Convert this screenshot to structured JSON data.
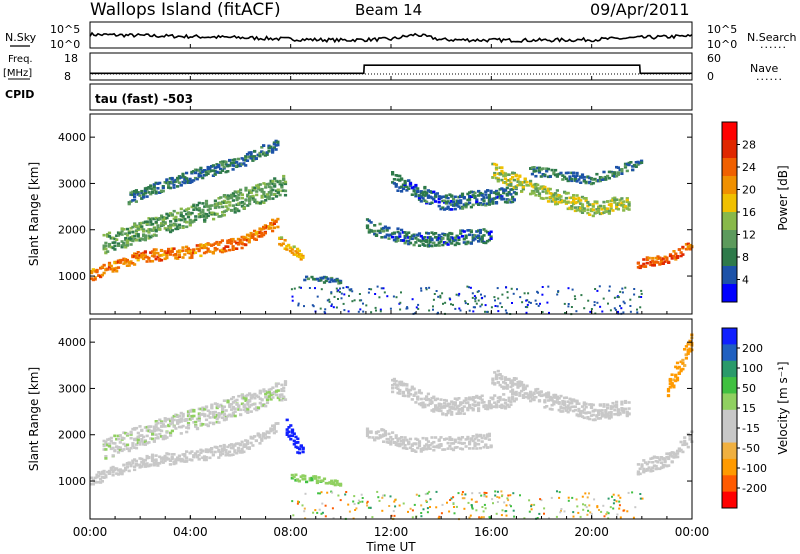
{
  "header": {
    "station": "Wallops Island (fitACF)",
    "beam": "Beam 14",
    "date": "09/Apr/2011"
  },
  "strip_labels": {
    "nsky": "N.Sky",
    "nsearch": "N.Search",
    "freq_top": "Freq.",
    "freq_unit": "[MHz]",
    "nave": "Nave",
    "cpid": "CPID",
    "cpid_value": "tau (fast) -503",
    "dotted": "......"
  },
  "strip_ticks": {
    "noise_left": [
      "10^5",
      "10^0"
    ],
    "noise_right": [
      "10^5",
      "10^0"
    ],
    "freq_left": [
      "18",
      "8"
    ],
    "nave_right": [
      "60",
      "0"
    ]
  },
  "panels": {
    "power": {
      "ylabel": "Slant Range [km]",
      "cbar_label": "Power [dB]",
      "cbar_ticks": [
        "28",
        "24",
        "20",
        "16",
        "12",
        "8",
        "4"
      ]
    },
    "velocity": {
      "ylabel": "Slant Range [km]",
      "cbar_label": "Velocity [m s⁻¹]",
      "cbar_ticks": [
        "200",
        "100",
        "50",
        "15",
        "-15",
        "-50",
        "-100",
        "-200"
      ]
    }
  },
  "colors": {
    "power_scale": [
      "#0000ff",
      "#1c52a8",
      "#2e7a4a",
      "#5c9a5c",
      "#88b84a",
      "#f0c000",
      "#f09000",
      "#f06000",
      "#e02800",
      "#ff0000"
    ],
    "velocity_scale": [
      "#ff0000",
      "#ff5a00",
      "#ff9a00",
      "#f0b040",
      "#c8c8c8",
      "#c8c8c8",
      "#90d060",
      "#40c040",
      "#2a9a6a",
      "#2060c0",
      "#1020ff"
    ]
  },
  "chart_data": [
    {
      "type": "line",
      "title": "N.Sky / N.Search",
      "xlabel": "Time UT",
      "x": [
        "00:00",
        "02:00",
        "04:00",
        "06:00",
        "08:00",
        "10:00",
        "12:00",
        "13:00",
        "14:00",
        "16:00",
        "18:00",
        "20:00",
        "22:00",
        "24:00"
      ],
      "series": [
        {
          "name": "N.Sky",
          "values": [
            2.6,
            2.4,
            2.2,
            2.0,
            1.7,
            1.5,
            1.7,
            2.6,
            1.6,
            1.5,
            1.5,
            1.6,
            2.0,
            2.3
          ]
        }
      ],
      "ylim": [
        0,
        5
      ],
      "ylabel": "",
      "scale": "log"
    },
    {
      "type": "line",
      "title": "Freq. / Nave",
      "x": [
        "00:00",
        "10:55",
        "10:56",
        "21:55",
        "21:56",
        "24:00"
      ],
      "series": [
        {
          "name": "Freq.",
          "values": [
            10.5,
            10.5,
            13.5,
            13.5,
            10.5,
            10.5
          ]
        }
      ],
      "ylim": [
        8,
        18
      ]
    },
    {
      "type": "heatmap",
      "title": "Power [dB]",
      "xlabel": "Time UT",
      "ylabel": "Slant Range [km]",
      "xticks": [
        "00:00",
        "04:00",
        "08:00",
        "12:00",
        "16:00",
        "20:00",
        "00:00"
      ],
      "yticks": [
        1000,
        2000,
        3000,
        4000
      ],
      "xlim": [
        0,
        24
      ],
      "ylim": [
        180,
        4500
      ],
      "colorbar_ticks": [
        4,
        8,
        12,
        16,
        20,
        24,
        28
      ],
      "bands": [
        {
          "t": [
            0.0,
            2.0,
            4.0,
            6.0,
            7.5
          ],
          "r": [
            1050,
            1450,
            1550,
            1750,
            2200
          ],
          "width": 250,
          "power": 22
        },
        {
          "t": [
            0.5,
            2.5,
            5.0,
            7.8
          ],
          "r": [
            1700,
            2100,
            2500,
            3000
          ],
          "width": 450,
          "power": 10
        },
        {
          "t": [
            1.5,
            3.5,
            6.0,
            7.5
          ],
          "r": [
            2700,
            3100,
            3500,
            3900
          ],
          "width": 250,
          "power": 6
        },
        {
          "t": [
            7.5,
            8.5
          ],
          "r": [
            1800,
            1400
          ],
          "width": 200,
          "power": 18
        },
        {
          "t": [
            8.5,
            10.0
          ],
          "r": [
            1000,
            900
          ],
          "width": 120,
          "power": 6
        },
        {
          "t": [
            11.0,
            13.0,
            16.0
          ],
          "r": [
            2100,
            1800,
            1900
          ],
          "width": 300,
          "power": 5
        },
        {
          "t": [
            12.0,
            14.0,
            17.0
          ],
          "r": [
            3100,
            2600,
            2800
          ],
          "width": 350,
          "power": 5
        },
        {
          "t": [
            16.0,
            18.0,
            20.0,
            21.5
          ],
          "r": [
            3300,
            2800,
            2500,
            2600
          ],
          "width": 350,
          "power": 14
        },
        {
          "t": [
            17.5,
            20.0,
            22.0
          ],
          "r": [
            3300,
            3100,
            3500
          ],
          "width": 200,
          "power": 6
        },
        {
          "t": [
            21.8,
            23.0,
            24.0
          ],
          "r": [
            1300,
            1400,
            1700
          ],
          "width": 200,
          "power": 24
        }
      ]
    },
    {
      "type": "heatmap",
      "title": "Velocity [m s⁻¹]",
      "xlabel": "Time UT",
      "ylabel": "Slant Range [km]",
      "xticks": [
        "00:00",
        "04:00",
        "08:00",
        "12:00",
        "16:00",
        "20:00",
        "00:00"
      ],
      "yticks": [
        1000,
        2000,
        3000,
        4000
      ],
      "xlim": [
        0,
        24
      ],
      "ylim": [
        180,
        4500
      ],
      "colorbar_ticks": [
        -200,
        -100,
        -50,
        -15,
        15,
        50,
        100,
        200
      ],
      "bands": [
        {
          "t": [
            0.0,
            2.0,
            4.0,
            6.0,
            7.5
          ],
          "r": [
            1050,
            1450,
            1550,
            1750,
            2200
          ],
          "width": 250,
          "velocity": 0
        },
        {
          "t": [
            0.5,
            2.5,
            5.0,
            7.8
          ],
          "r": [
            1700,
            2100,
            2500,
            3000
          ],
          "width": 450,
          "velocity": 5
        },
        {
          "t": [
            7.8,
            8.5
          ],
          "r": [
            2200,
            1500
          ],
          "width": 350,
          "velocity": 220
        },
        {
          "t": [
            8.0,
            10.0
          ],
          "r": [
            1100,
            1000
          ],
          "width": 160,
          "velocity": 40
        },
        {
          "t": [
            11.0,
            13.0,
            16.0
          ],
          "r": [
            2100,
            1800,
            1900
          ],
          "width": 300,
          "velocity": 0
        },
        {
          "t": [
            12.0,
            14.0,
            17.0
          ],
          "r": [
            3100,
            2600,
            2800
          ],
          "width": 350,
          "velocity": 0
        },
        {
          "t": [
            16.0,
            18.0,
            20.0,
            21.5
          ],
          "r": [
            3300,
            2800,
            2500,
            2600
          ],
          "width": 350,
          "velocity": 0
        },
        {
          "t": [
            21.8,
            23.0,
            24.0
          ],
          "r": [
            1300,
            1500,
            2000
          ],
          "width": 300,
          "velocity": 0
        },
        {
          "t": [
            23.0,
            24.0
          ],
          "r": [
            3000,
            4100
          ],
          "width": 400,
          "velocity": -60
        }
      ]
    }
  ]
}
